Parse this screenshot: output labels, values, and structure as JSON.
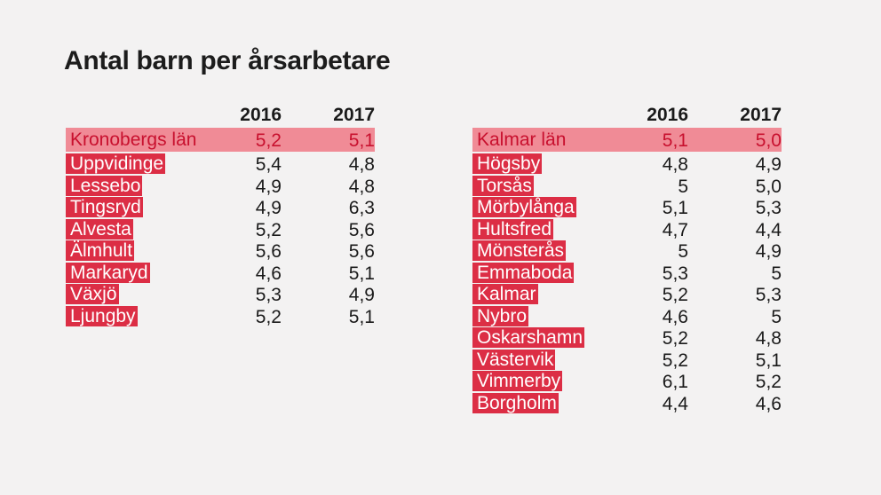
{
  "title": "Antal barn per årsarbetare",
  "chart_data": {
    "type": "table",
    "title": "Antal barn per årsarbetare",
    "columns": [
      "2016",
      "2017"
    ],
    "tables": [
      {
        "total": {
          "name": "Kronobergs län",
          "v2016": "5,2",
          "v2017": "5,1"
        },
        "rows": [
          {
            "name": "Uppvidinge",
            "v2016": "5,4",
            "v2017": "4,8"
          },
          {
            "name": "Lessebo",
            "v2016": "4,9",
            "v2017": "4,8"
          },
          {
            "name": "Tingsryd",
            "v2016": "4,9",
            "v2017": "6,3"
          },
          {
            "name": "Alvesta",
            "v2016": "5,2",
            "v2017": "5,6"
          },
          {
            "name": "Älmhult",
            "v2016": "5,6",
            "v2017": "5,6"
          },
          {
            "name": "Markaryd",
            "v2016": "4,6",
            "v2017": "5,1"
          },
          {
            "name": "Växjö",
            "v2016": "5,3",
            "v2017": "4,9"
          },
          {
            "name": "Ljungby",
            "v2016": "5,2",
            "v2017": "5,1"
          }
        ]
      },
      {
        "total": {
          "name": "Kalmar län",
          "v2016": "5,1",
          "v2017": "5,0"
        },
        "rows": [
          {
            "name": "Högsby",
            "v2016": "4,8",
            "v2017": "4,9"
          },
          {
            "name": "Torsås",
            "v2016": "5",
            "v2017": "5,0"
          },
          {
            "name": "Mörbylånga",
            "v2016": "5,1",
            "v2017": "5,3"
          },
          {
            "name": "Hultsfred",
            "v2016": "4,7",
            "v2017": "4,4"
          },
          {
            "name": "Mönsterås",
            "v2016": "5",
            "v2017": "4,9"
          },
          {
            "name": "Emmaboda",
            "v2016": "5,3",
            "v2017": "5"
          },
          {
            "name": "Kalmar",
            "v2016": "5,2",
            "v2017": "5,3"
          },
          {
            "name": "Nybro",
            "v2016": "4,6",
            "v2017": "5"
          },
          {
            "name": "Oskarshamn",
            "v2016": "5,2",
            "v2017": "4,8"
          },
          {
            "name": "Västervik",
            "v2016": "5,2",
            "v2017": "5,1"
          },
          {
            "name": "Vimmerby",
            "v2016": "6,1",
            "v2017": "5,2"
          },
          {
            "name": "Borgholm",
            "v2016": "4,4",
            "v2017": "4,6"
          }
        ]
      }
    ],
    "colors": {
      "highlight": "#dc2e45",
      "total_band": "#f08b96",
      "total_text": "#c8102e",
      "background": "#f3f2f2"
    }
  }
}
